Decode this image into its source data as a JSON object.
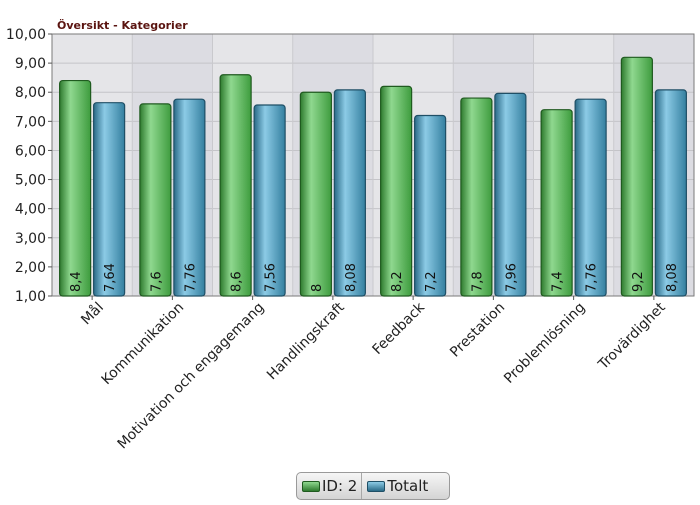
{
  "chart_data": {
    "type": "bar",
    "title": "Översikt - Kategorier",
    "xlabel": "",
    "ylabel": "",
    "ylim": [
      1,
      10
    ],
    "yticks": [
      "1,00",
      "2,00",
      "3,00",
      "4,00",
      "5,00",
      "6,00",
      "7,00",
      "8,00",
      "9,00",
      "10,00"
    ],
    "categories": [
      "Mål",
      "Kommunikation",
      "Motivation och engagemang",
      "Handlingskraft",
      "Feedback",
      "Prestation",
      "Problemlösning",
      "Trovärdighet"
    ],
    "series": [
      {
        "name": "ID: 2",
        "values": [
          8.4,
          7.6,
          8.6,
          8,
          8.2,
          7.8,
          7.4,
          9.2
        ],
        "labels": [
          "8,4",
          "7,6",
          "8,6",
          "8",
          "8,2",
          "7,8",
          "7,4",
          "9,2"
        ],
        "color": "#4bb14b"
      },
      {
        "name": "Totalt",
        "values": [
          7.64,
          7.76,
          7.56,
          8.08,
          7.2,
          7.96,
          7.76,
          8.08
        ],
        "labels": [
          "7,64",
          "7,76",
          "7,56",
          "8,08",
          "7,2",
          "7,96",
          "7,76",
          "8,08"
        ],
        "color": "#3f93b8"
      }
    ],
    "grid": true,
    "legend_position": "bottom-center",
    "title_color": "#5a1410"
  }
}
